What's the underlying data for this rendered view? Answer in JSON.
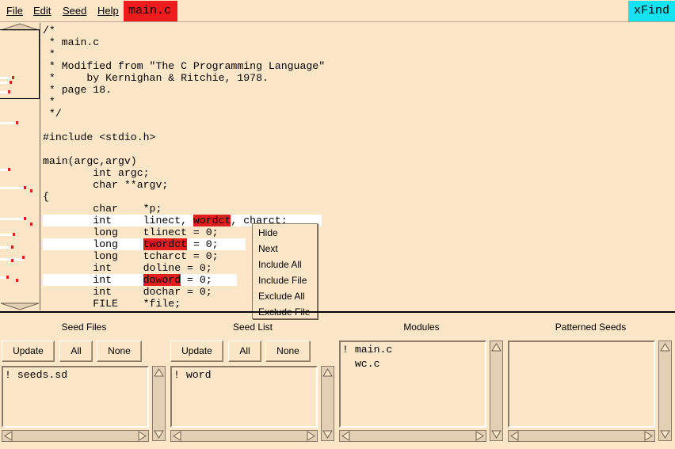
{
  "menubar": {
    "items": [
      "File",
      "Edit",
      "Seed",
      "Help"
    ],
    "file_tab": "main.c",
    "app_title": "xFind"
  },
  "editor": {
    "lines": [
      "/*",
      " * main.c",
      " *",
      " * Modified from \"The C Programming Language\"",
      " *     by Kernighan & Ritchie, 1978.",
      " * page 18.",
      " *",
      " */",
      "",
      "#include <stdio.h>",
      "",
      "main(argc,argv)",
      "        int argc;",
      "        char **argv;",
      "{",
      "        char    *p;",
      "        int     linect, ",
      "        long    tlinect = 0;",
      "        long    ",
      "        long    tcharct = 0;",
      "        int     doline = 0;",
      "        int     ",
      "        int     dochar = 0;",
      "        FILE    *file;"
    ],
    "hits": {
      "l16_hit": "wordct",
      "l16_rest": ", charct;",
      "l18_hit": "twordct",
      "l18_rest": " = 0;",
      "l21_hit": "doword",
      "l21_rest": " = 0;"
    }
  },
  "context_menu": {
    "items": [
      "Hide",
      "Next",
      "Include All",
      "Include File",
      "Exclude All",
      "Exclude File"
    ]
  },
  "panels": {
    "seed_files": {
      "title": "Seed Files",
      "buttons": [
        "Update",
        "All",
        "None"
      ],
      "entries": [
        "! seeds.sd"
      ]
    },
    "seed_list": {
      "title": "Seed List",
      "buttons": [
        "Update",
        "All",
        "None"
      ],
      "entries": [
        "! word"
      ]
    },
    "modules": {
      "title": "Modules",
      "entries": [
        "! main.c",
        "  wc.c"
      ]
    },
    "patterned_seeds": {
      "title": "Patterned Seeds",
      "entries": []
    }
  },
  "colors": {
    "background": "#fce6c8",
    "highlight": "#e31e1e",
    "file_tab": "#ee1c1c",
    "app_title": "#12e2f2"
  }
}
